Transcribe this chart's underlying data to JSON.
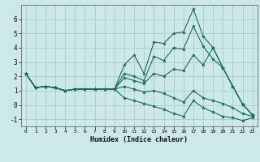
{
  "title": "",
  "xlabel": "Humidex (Indice chaleur)",
  "xlim": [
    -0.5,
    23.5
  ],
  "ylim": [
    -1.5,
    7.0
  ],
  "xticks": [
    0,
    1,
    2,
    3,
    4,
    5,
    6,
    7,
    8,
    9,
    10,
    11,
    12,
    13,
    14,
    15,
    16,
    17,
    18,
    19,
    20,
    21,
    22,
    23
  ],
  "yticks": [
    -1,
    0,
    1,
    2,
    3,
    4,
    5,
    6
  ],
  "bg_color": "#cce8e8",
  "grid_color": "#aacccc",
  "line_color": "#1a6b5a",
  "lines": [
    [
      2.2,
      1.2,
      1.3,
      1.2,
      1.0,
      1.1,
      1.1,
      1.1,
      1.1,
      1.1,
      2.8,
      3.5,
      2.2,
      4.4,
      4.3,
      5.0,
      5.1,
      6.7,
      4.8,
      4.0,
      2.6,
      1.3,
      0.05,
      -0.7
    ],
    [
      2.2,
      1.2,
      1.3,
      1.2,
      1.0,
      1.1,
      1.1,
      1.1,
      1.1,
      1.1,
      2.2,
      2.0,
      1.7,
      3.4,
      3.1,
      4.0,
      3.9,
      5.5,
      4.1,
      3.2,
      2.6,
      1.3,
      0.05,
      -0.7
    ],
    [
      2.2,
      1.2,
      1.3,
      1.2,
      1.0,
      1.1,
      1.1,
      1.1,
      1.1,
      1.1,
      1.9,
      1.7,
      1.5,
      2.2,
      2.0,
      2.5,
      2.4,
      3.5,
      2.8,
      4.0,
      2.6,
      1.3,
      0.05,
      -0.7
    ],
    [
      2.2,
      1.2,
      1.3,
      1.2,
      1.0,
      1.1,
      1.1,
      1.1,
      1.1,
      1.1,
      1.3,
      1.1,
      0.9,
      1.0,
      0.8,
      0.5,
      0.2,
      1.0,
      0.5,
      0.3,
      0.1,
      -0.2,
      -0.6,
      -0.8
    ],
    [
      2.2,
      1.2,
      1.3,
      1.2,
      1.0,
      1.1,
      1.1,
      1.1,
      1.1,
      1.1,
      0.5,
      0.3,
      0.1,
      -0.1,
      -0.3,
      -0.6,
      -0.8,
      0.3,
      -0.2,
      -0.5,
      -0.8,
      -0.9,
      -1.1,
      -0.9
    ]
  ]
}
